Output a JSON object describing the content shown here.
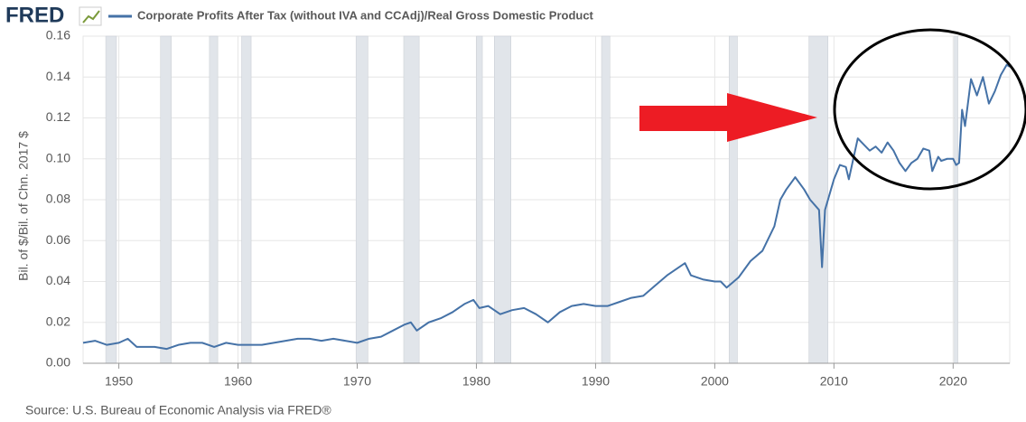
{
  "logo": "FRED",
  "chart_data": {
    "type": "line",
    "ylabel": "Bil. of $/Bil. of Chn. 2017 $",
    "source": "Source: U.S. Bureau of Economic Analysis via FRED®",
    "xlim": [
      1947,
      2024.75
    ],
    "ylim": [
      0,
      0.16
    ],
    "xticks": [
      1950,
      1960,
      1970,
      1980,
      1990,
      2000,
      2010,
      2020
    ],
    "yticks": [
      {
        "value": 0,
        "label": "0.00"
      },
      0.02,
      0.04,
      0.06,
      0.08,
      {
        "value": 0.1,
        "label": "0.10"
      },
      0.12,
      0.14,
      0.16
    ],
    "grid": true,
    "recessions": [
      [
        1948.9,
        1949.8
      ],
      [
        1953.5,
        1954.4
      ],
      [
        1957.6,
        1958.3
      ],
      [
        1960.3,
        1961.1
      ],
      [
        1969.9,
        1970.9
      ],
      [
        1973.9,
        1975.2
      ],
      [
        1980.0,
        1980.5
      ],
      [
        1981.5,
        1982.9
      ],
      [
        1990.5,
        1991.2
      ],
      [
        2001.2,
        2001.9
      ],
      [
        2007.9,
        2009.5
      ],
      [
        2020.1,
        2020.4
      ]
    ],
    "x": [
      1947,
      1948,
      1949,
      1950,
      1950.75,
      1951.5,
      1952,
      1953,
      1954,
      1955,
      1956,
      1957,
      1958,
      1959,
      1960,
      1961,
      1962,
      1963,
      1964,
      1965,
      1966,
      1967,
      1968,
      1969,
      1970,
      1971,
      1972,
      1973,
      1974,
      1974.5,
      1975,
      1976,
      1977,
      1978,
      1979,
      1979.75,
      1980.25,
      1981,
      1982,
      1983,
      1984,
      1985,
      1986,
      1987,
      1988,
      1989,
      1990,
      1991,
      1992,
      1993,
      1994,
      1995,
      1996,
      1997,
      1997.5,
      1998,
      1999,
      2000,
      2000.5,
      2001,
      2002,
      2003,
      2004,
      2005,
      2005.5,
      2006,
      2006.75,
      2007.5,
      2008,
      2008.75,
      2009,
      2009.25,
      2009.75,
      2010,
      2010.5,
      2011,
      2011.25,
      2012,
      2012.5,
      2013,
      2013.5,
      2014,
      2014.5,
      2015,
      2015.5,
      2016,
      2016.5,
      2017,
      2017.5,
      2018,
      2018.25,
      2018.75,
      2019,
      2019.5,
      2020,
      2020.25,
      2020.5,
      2020.75,
      2021,
      2021.5,
      2022,
      2022.5,
      2023,
      2023.5,
      2024,
      2024.5,
      2024.75
    ],
    "series": [
      {
        "name": "Corporate Profits After Tax (without IVA and CCAdj)/Real Gross Domestic Product",
        "color": "#4572a7",
        "values": [
          0.01,
          0.011,
          0.009,
          0.01,
          0.012,
          0.008,
          0.008,
          0.008,
          0.007,
          0.009,
          0.01,
          0.01,
          0.008,
          0.01,
          0.009,
          0.009,
          0.009,
          0.01,
          0.011,
          0.012,
          0.012,
          0.011,
          0.012,
          0.011,
          0.01,
          0.012,
          0.013,
          0.016,
          0.019,
          0.02,
          0.016,
          0.02,
          0.022,
          0.025,
          0.029,
          0.031,
          0.027,
          0.028,
          0.024,
          0.026,
          0.027,
          0.024,
          0.02,
          0.025,
          0.028,
          0.029,
          0.028,
          0.028,
          0.03,
          0.032,
          0.033,
          0.038,
          0.043,
          0.047,
          0.049,
          0.043,
          0.041,
          0.04,
          0.04,
          0.037,
          0.042,
          0.05,
          0.055,
          0.067,
          0.08,
          0.085,
          0.091,
          0.085,
          0.08,
          0.075,
          0.047,
          0.075,
          0.085,
          0.09,
          0.097,
          0.096,
          0.09,
          0.11,
          0.107,
          0.104,
          0.106,
          0.103,
          0.108,
          0.104,
          0.098,
          0.094,
          0.098,
          0.1,
          0.105,
          0.104,
          0.094,
          0.101,
          0.099,
          0.1,
          0.1,
          0.097,
          0.098,
          0.124,
          0.116,
          0.139,
          0.131,
          0.14,
          0.127,
          0.133,
          0.141,
          0.146,
          0.145
        ]
      }
    ]
  }
}
